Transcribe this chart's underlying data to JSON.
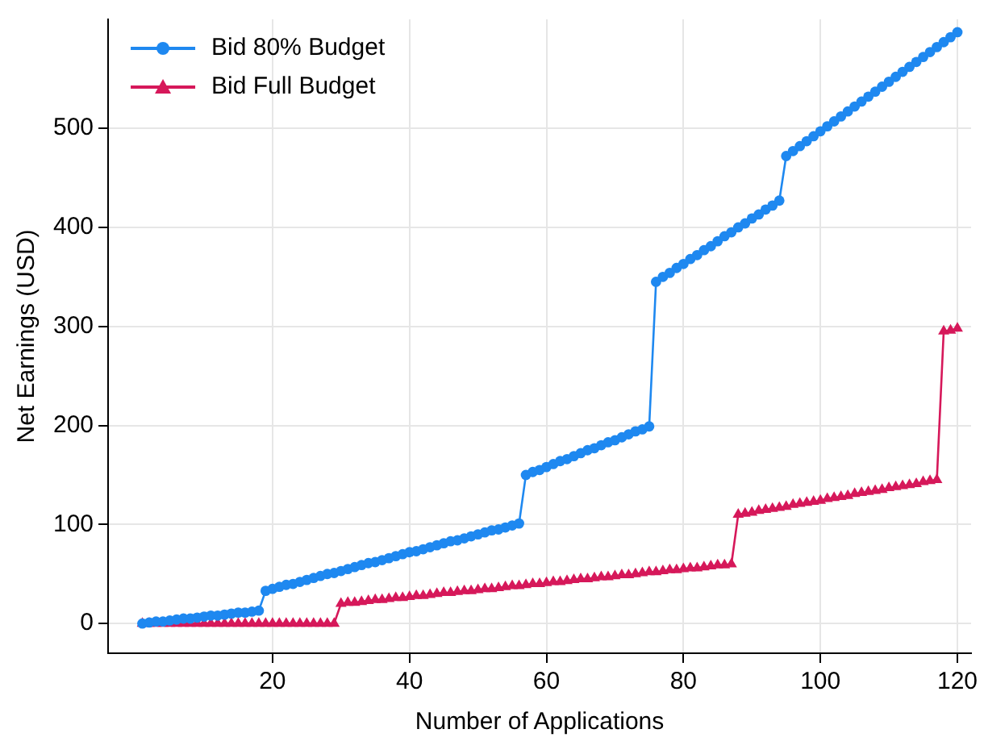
{
  "chart_data": {
    "type": "line",
    "xlabel": "Number of Applications",
    "ylabel": "Net Earnings (USD)",
    "x": [
      1,
      2,
      3,
      4,
      5,
      6,
      7,
      8,
      9,
      10,
      11,
      12,
      13,
      14,
      15,
      16,
      17,
      18,
      19,
      20,
      21,
      22,
      23,
      24,
      25,
      26,
      27,
      28,
      29,
      30,
      31,
      32,
      33,
      34,
      35,
      36,
      37,
      38,
      39,
      40,
      41,
      42,
      43,
      44,
      45,
      46,
      47,
      48,
      49,
      50,
      51,
      52,
      53,
      54,
      55,
      56,
      57,
      58,
      59,
      60,
      61,
      62,
      63,
      64,
      65,
      66,
      67,
      68,
      69,
      70,
      71,
      72,
      73,
      74,
      75,
      76,
      77,
      78,
      79,
      80,
      81,
      82,
      83,
      84,
      85,
      86,
      87,
      88,
      89,
      90,
      91,
      92,
      93,
      94,
      95,
      96,
      97,
      98,
      99,
      100,
      101,
      102,
      103,
      104,
      105,
      106,
      107,
      108,
      109,
      110,
      111,
      112,
      113,
      114,
      115,
      116,
      117,
      118,
      119,
      120
    ],
    "series": [
      {
        "name": "Bid 80% Budget",
        "color": "#1e88f0",
        "marker": "circle",
        "values": [
          0,
          1,
          2,
          2,
          3,
          4,
          5,
          5,
          6,
          7,
          8,
          8,
          9,
          10,
          11,
          11,
          12,
          13,
          33,
          35,
          37,
          39,
          40,
          42,
          44,
          46,
          48,
          50,
          51,
          53,
          55,
          57,
          59,
          61,
          62,
          64,
          66,
          68,
          70,
          72,
          73,
          75,
          77,
          79,
          81,
          83,
          84,
          86,
          88,
          90,
          92,
          94,
          95,
          97,
          99,
          101,
          150,
          153,
          155,
          158,
          161,
          164,
          166,
          169,
          172,
          175,
          177,
          180,
          183,
          185,
          188,
          191,
          194,
          196,
          199,
          345,
          350,
          354,
          359,
          363,
          368,
          372,
          377,
          381,
          386,
          391,
          395,
          400,
          404,
          409,
          413,
          418,
          422,
          427,
          472,
          477,
          482,
          487,
          492,
          497,
          502,
          507,
          512,
          517,
          522,
          527,
          532,
          537,
          542,
          547,
          552,
          557,
          562,
          567,
          572,
          577,
          582,
          587,
          592,
          597
        ]
      },
      {
        "name": "Bid Full Budget",
        "color": "#d6185a",
        "marker": "triangle",
        "values": [
          0,
          0,
          0,
          0,
          0,
          0,
          0,
          0,
          0,
          0,
          0,
          0,
          0,
          0,
          0,
          0,
          0,
          0,
          0,
          0,
          0,
          0,
          0,
          0,
          0,
          0,
          0,
          0,
          0,
          20,
          21,
          21,
          22,
          23,
          24,
          24,
          25,
          26,
          26,
          27,
          28,
          28,
          29,
          30,
          31,
          31,
          32,
          33,
          33,
          34,
          35,
          35,
          36,
          37,
          38,
          38,
          39,
          40,
          40,
          41,
          42,
          42,
          43,
          44,
          45,
          45,
          46,
          47,
          47,
          48,
          49,
          49,
          50,
          51,
          52,
          52,
          53,
          54,
          54,
          55,
          56,
          56,
          57,
          58,
          59,
          59,
          60,
          110,
          111,
          112,
          114,
          115,
          116,
          117,
          118,
          120,
          121,
          122,
          123,
          124,
          126,
          127,
          128,
          129,
          131,
          132,
          133,
          134,
          135,
          137,
          138,
          139,
          140,
          141,
          143,
          144,
          145,
          295,
          296,
          298
        ]
      }
    ],
    "xlim": [
      -4,
      122
    ],
    "xticks": [
      20,
      40,
      60,
      80,
      100,
      120
    ],
    "ylim": [
      -30,
      610
    ],
    "yticks": [
      0,
      100,
      200,
      300,
      400,
      500
    ],
    "grid": true,
    "legend": "top left"
  }
}
